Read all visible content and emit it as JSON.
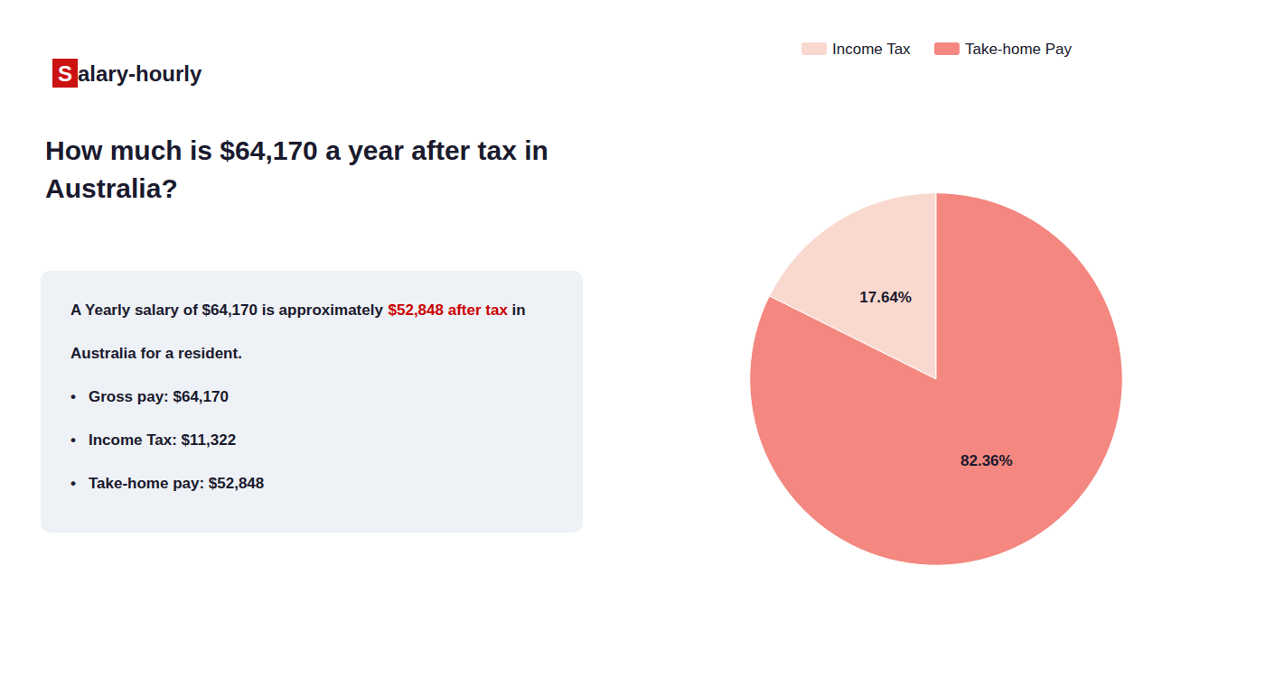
{
  "chart_data": {
    "type": "pie",
    "title": "How much is $64,170 a year after tax in\nAustralia?",
    "categories": [
      "Income Tax",
      "Take-home Pay"
    ],
    "values": [
      17.64,
      82.36
    ],
    "value_labels": [
      "17.64%",
      "82.36%"
    ],
    "colors": [
      "#f9d9cf",
      "#f4877f"
    ],
    "data_labels": true,
    "legend": "top",
    "annotations": [
      [
        {
          "text": "S",
          "color": "#cc1111"
        },
        {
          "text": "alary-hourly"
        }
      ],
      [
        {
          "text": "A Yearly salary of $64,170 is approximately "
        },
        {
          "text": "$52,848 after tax",
          "color": "#cc0000"
        },
        {
          "text": " in"
        }
      ],
      [
        {
          "text": "Australia for a resident."
        }
      ],
      [
        {
          "text": "•"
        },
        {
          "text": "Gross pay: $64,170"
        }
      ],
      [
        {
          "text": "•"
        },
        {
          "text": "Income Tax: $11,322"
        }
      ],
      [
        {
          "text": "•"
        },
        {
          "text": "Take-home pay: $52,848"
        }
      ]
    ]
  }
}
